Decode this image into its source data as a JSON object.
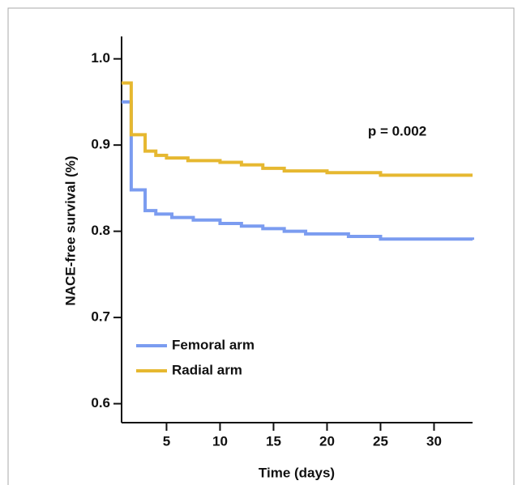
{
  "chart_data": {
    "type": "step",
    "ylabel": "NACE-free survival (%)",
    "xlabel": "Time (days)",
    "annotation": "p = 0.002",
    "xlim": [
      0.8,
      33.6
    ],
    "ylim": [
      0.578,
      1.026
    ],
    "xticks": [
      5,
      10,
      15,
      20,
      25,
      30
    ],
    "yticks": [
      {
        "value": 1,
        "label": "1.0"
      },
      0.9,
      0.8,
      0.7,
      0.6
    ],
    "legend": "lower left",
    "series": [
      {
        "name": "Femoral arm",
        "color": "#7b9cf0",
        "x": [
          0.8,
          1.7,
          3.0,
          4.0,
          5.5,
          7.5,
          10,
          12,
          14,
          16,
          18,
          22,
          25,
          33.6
        ],
        "values": [
          0.95,
          0.848,
          0.824,
          0.82,
          0.816,
          0.813,
          0.809,
          0.806,
          0.803,
          0.8,
          0.797,
          0.794,
          0.791,
          0.79
        ]
      },
      {
        "name": "Radial arm",
        "color": "#e6b830",
        "x": [
          0.8,
          1.7,
          3.0,
          4.0,
          5.0,
          7.0,
          10,
          12,
          14,
          16,
          20,
          25,
          33.6
        ],
        "values": [
          0.972,
          0.912,
          0.893,
          0.888,
          0.885,
          0.882,
          0.88,
          0.877,
          0.873,
          0.87,
          0.868,
          0.865,
          0.865
        ]
      }
    ]
  }
}
